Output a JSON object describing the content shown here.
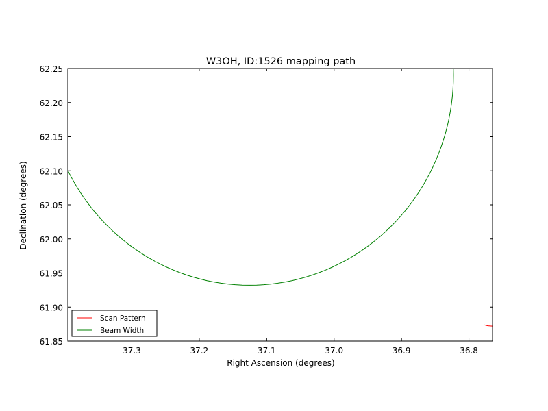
{
  "chart_data": {
    "type": "line",
    "title": "W3OH, ID:1526 mapping path",
    "xlabel": "Right Ascension (degrees)",
    "ylabel": "Declination (degrees)",
    "xlim": [
      37.395,
      36.765
    ],
    "ylim": [
      61.85,
      62.25
    ],
    "x_inverted": true,
    "grid": false,
    "xticks": [
      37.3,
      37.2,
      37.1,
      37.0,
      36.9,
      36.8
    ],
    "xtick_labels": [
      "37.3",
      "37.2",
      "37.1",
      "37.0",
      "36.9",
      "36.8"
    ],
    "yticks": [
      61.85,
      61.9,
      61.95,
      62.0,
      62.05,
      62.1,
      62.15,
      62.2,
      62.25
    ],
    "ytick_labels": [
      "61.85",
      "61.90",
      "61.95",
      "62.00",
      "62.05",
      "62.10",
      "62.15",
      "62.20",
      "62.25"
    ],
    "legend_position": "lower-left",
    "series": [
      {
        "name": "Scan Pattern",
        "color": "#ff0000",
        "x": [
          36.778,
          36.772,
          36.765
        ],
        "y": [
          61.874,
          61.8725,
          61.872
        ]
      },
      {
        "name": "Beam Width",
        "color": "#008000",
        "shape": "circle",
        "center_x": 37.1255,
        "center_y": 62.2405,
        "radius_dec": 0.3085,
        "radius_ra": 0.3025
      }
    ]
  }
}
